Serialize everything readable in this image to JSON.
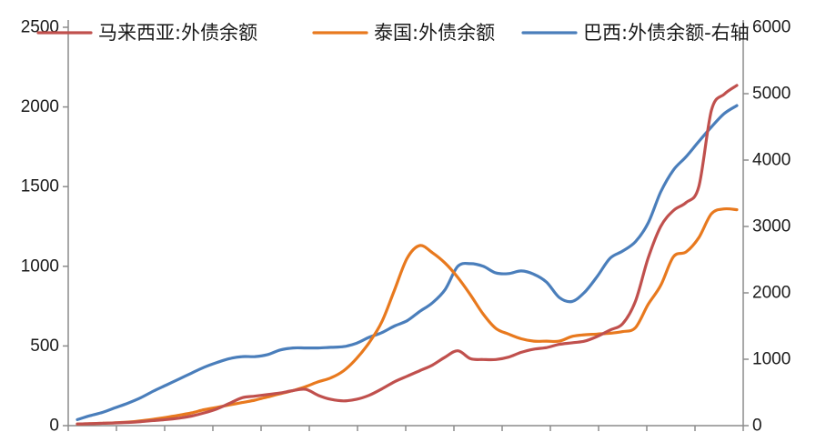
{
  "chart_data": {
    "type": "line",
    "x_count": 53,
    "y_left": {
      "lim": [
        0,
        2500
      ],
      "ticks": [
        0,
        500,
        1000,
        1500,
        2000,
        2500
      ]
    },
    "y_right": {
      "lim": [
        0,
        6000
      ],
      "ticks": [
        0,
        1000,
        2000,
        3000,
        4000,
        5000,
        6000
      ]
    },
    "legend_position": "top",
    "series": [
      {
        "name": "马来西亚:外债余额",
        "color": "#c0504d",
        "axis": "left",
        "values": [
          10,
          12,
          15,
          17,
          20,
          25,
          32,
          38,
          47,
          60,
          80,
          105,
          140,
          175,
          185,
          195,
          205,
          220,
          228,
          190,
          165,
          155,
          165,
          190,
          230,
          275,
          310,
          345,
          380,
          430,
          470,
          420,
          415,
          415,
          430,
          460,
          480,
          490,
          510,
          520,
          530,
          560,
          600,
          640,
          780,
          1050,
          1250,
          1350,
          1400,
          1500,
          1980,
          2080,
          2135
        ]
      },
      {
        "name": "泰国:外债余额",
        "color": "#e8791e",
        "axis": "left",
        "values": [
          10,
          12,
          15,
          18,
          22,
          30,
          40,
          52,
          65,
          80,
          100,
          115,
          130,
          145,
          160,
          180,
          200,
          220,
          245,
          275,
          300,
          345,
          420,
          520,
          650,
          850,
          1050,
          1130,
          1085,
          1020,
          930,
          820,
          700,
          610,
          575,
          545,
          530,
          530,
          530,
          560,
          570,
          575,
          580,
          590,
          615,
          760,
          880,
          1060,
          1090,
          1180,
          1330,
          1360,
          1355
        ]
      },
      {
        "name": "巴西:外债余额-右轴",
        "color": "#4a7ebb",
        "axis": "right",
        "values": [
          90,
          150,
          200,
          270,
          340,
          420,
          520,
          610,
          700,
          790,
          880,
          950,
          1010,
          1040,
          1040,
          1070,
          1140,
          1170,
          1170,
          1170,
          1180,
          1190,
          1240,
          1330,
          1400,
          1500,
          1580,
          1720,
          1850,
          2050,
          2400,
          2440,
          2400,
          2300,
          2290,
          2330,
          2280,
          2160,
          1930,
          1870,
          2010,
          2250,
          2520,
          2630,
          2770,
          3050,
          3520,
          3850,
          4050,
          4280,
          4500,
          4700,
          4820
        ]
      }
    ]
  }
}
